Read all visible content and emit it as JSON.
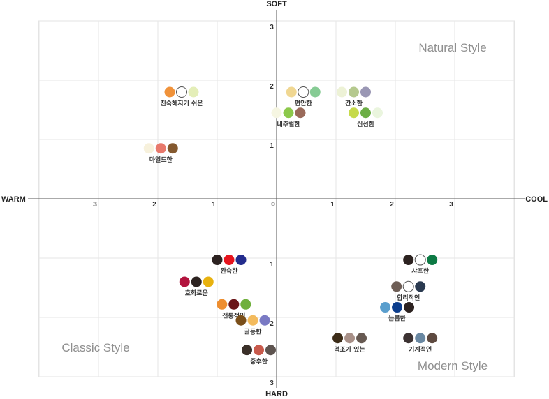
{
  "chart_data": {
    "type": "scatter",
    "axes": {
      "top": "SOFT",
      "bottom": "HARD",
      "left": "WARM",
      "right": "COOL"
    },
    "xlim": [
      -4,
      4
    ],
    "ylim": [
      -3,
      3
    ],
    "x_ticks": [
      {
        "value": -3,
        "label": "3"
      },
      {
        "value": -2,
        "label": "2"
      },
      {
        "value": -1,
        "label": "1"
      },
      {
        "value": 0,
        "label": "0"
      },
      {
        "value": 1,
        "label": "1"
      },
      {
        "value": 2,
        "label": "2"
      },
      {
        "value": 3,
        "label": "3"
      }
    ],
    "y_ticks": [
      {
        "value": 3,
        "label": "3"
      },
      {
        "value": 2,
        "label": "2"
      },
      {
        "value": 1,
        "label": "1"
      },
      {
        "value": -1,
        "label": "1"
      },
      {
        "value": -2,
        "label": "2"
      },
      {
        "value": -3,
        "label": "3"
      }
    ],
    "grid": true,
    "quadrant_labels": [
      {
        "text": "Natural Style",
        "corner": "top-right"
      },
      {
        "text": "Classic Style",
        "corner": "bottom-left"
      },
      {
        "text": "Modern Style",
        "corner": "bottom-right"
      }
    ],
    "keywords": [
      {
        "label": "친숙해지기 쉬운",
        "x": -1.6,
        "y": 1.8,
        "colors": [
          "#f0923a",
          "#ffffff",
          "#e4eeb8"
        ]
      },
      {
        "label": "편안한",
        "x": 0.45,
        "y": 1.8,
        "colors": [
          "#f0d792",
          "#ffffff",
          "#86cb94"
        ]
      },
      {
        "label": "간소한",
        "x": 1.3,
        "y": 1.8,
        "colors": [
          "#edf2d6",
          "#b5c98e",
          "#9a97b4"
        ]
      },
      {
        "label": "내추럴한",
        "x": 0.2,
        "y": 1.45,
        "colors": [
          "#f6f6e2",
          "#8cc84b",
          "#9a6a5a"
        ]
      },
      {
        "label": "신선한",
        "x": 1.5,
        "y": 1.45,
        "colors": [
          "#c6da4a",
          "#6cae45",
          "#eaf5de"
        ]
      },
      {
        "label": "마일드한",
        "x": -1.95,
        "y": 0.85,
        "colors": [
          "#f7f1dc",
          "#e8796c",
          "#84592f"
        ]
      },
      {
        "label": "완숙한",
        "x": -0.8,
        "y": -1.03,
        "colors": [
          "#2c2220",
          "#e6141d",
          "#232c8d"
        ]
      },
      {
        "label": "호화로운",
        "x": -1.35,
        "y": -1.4,
        "colors": [
          "#b2143e",
          "#2c2220",
          "#e8b20f"
        ]
      },
      {
        "label": "전통적인",
        "x": -0.72,
        "y": -1.78,
        "colors": [
          "#ee8e2f",
          "#6a1518",
          "#6fb03c"
        ]
      },
      {
        "label": "골동한",
        "x": -0.4,
        "y": -2.05,
        "colors": [
          "#7a4f1a",
          "#f3bb5e",
          "#7a7ac4"
        ]
      },
      {
        "label": "중후한",
        "x": -0.3,
        "y": -2.55,
        "colors": [
          "#3a2f28",
          "#c85a4c",
          "#5e5450"
        ]
      },
      {
        "label": "격조가 있는",
        "x": 1.23,
        "y": -2.35,
        "colors": [
          "#3c2c18",
          "#a89088",
          "#675a52"
        ]
      },
      {
        "label": "샤프한",
        "x": 2.42,
        "y": -1.03,
        "colors": [
          "#2c2220",
          "#ffffff",
          "#0c7a44"
        ]
      },
      {
        "label": "합리적인",
        "x": 2.22,
        "y": -1.48,
        "colors": [
          "#6e5e56",
          "#ffffff",
          "#2a3a50"
        ]
      },
      {
        "label": "늠름한",
        "x": 2.03,
        "y": -1.83,
        "colors": [
          "#5a9ecd",
          "#0c3d8c",
          "#2c2220"
        ]
      },
      {
        "label": "기계적인",
        "x": 2.42,
        "y": -2.35,
        "colors": [
          "#3c3232",
          "#6a88a2",
          "#5e4a40"
        ]
      }
    ]
  }
}
